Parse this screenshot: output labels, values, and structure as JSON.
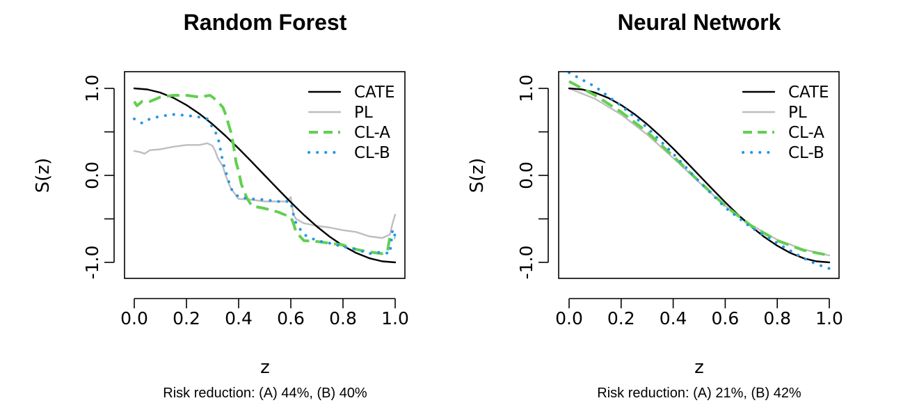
{
  "chart_data": [
    {
      "type": "line",
      "title": "Random Forest",
      "xlabel": "z",
      "ylabel": "S(z)",
      "subtitle": "Risk reduction: (A) 44%, (B) 40%",
      "xlim": [
        0,
        1
      ],
      "ylim": [
        -1.18,
        1.18
      ],
      "xticks": [
        "0.0",
        "0.2",
        "0.4",
        "0.6",
        "0.8",
        "1.0"
      ],
      "yticks": [
        "-1.0",
        "",
        "0.0",
        "",
        "1.0"
      ],
      "legend_position": "top-right",
      "series": [
        {
          "name": "CATE",
          "color": "#000000",
          "dash": "solid",
          "x": [
            0,
            0.05,
            0.1,
            0.15,
            0.2,
            0.25,
            0.3,
            0.35,
            0.4,
            0.45,
            0.5,
            0.55,
            0.6,
            0.65,
            0.7,
            0.75,
            0.8,
            0.85,
            0.9,
            0.95,
            1.0
          ],
          "y": [
            1.0,
            0.988,
            0.951,
            0.891,
            0.809,
            0.707,
            0.588,
            0.454,
            0.309,
            0.156,
            0.0,
            -0.156,
            -0.309,
            -0.454,
            -0.588,
            -0.707,
            -0.809,
            -0.891,
            -0.951,
            -0.988,
            -1.0
          ]
        },
        {
          "name": "PL",
          "color": "#bebebe",
          "dash": "solid",
          "x": [
            0,
            0.02,
            0.04,
            0.06,
            0.1,
            0.15,
            0.2,
            0.25,
            0.28,
            0.3,
            0.31,
            0.32,
            0.33,
            0.34,
            0.35,
            0.37,
            0.4,
            0.45,
            0.5,
            0.55,
            0.58,
            0.6,
            0.61,
            0.62,
            0.65,
            0.7,
            0.75,
            0.8,
            0.85,
            0.9,
            0.95,
            0.98,
            0.99,
            1.0
          ],
          "y": [
            0.28,
            0.27,
            0.25,
            0.29,
            0.3,
            0.33,
            0.35,
            0.35,
            0.37,
            0.34,
            0.28,
            0.2,
            0.15,
            0.1,
            0.0,
            -0.15,
            -0.27,
            -0.28,
            -0.3,
            -0.3,
            -0.3,
            -0.25,
            -0.45,
            -0.5,
            -0.55,
            -0.58,
            -0.6,
            -0.63,
            -0.65,
            -0.7,
            -0.72,
            -0.68,
            -0.55,
            -0.45
          ]
        },
        {
          "name": "CL-A",
          "color": "#61d04f",
          "dash": "dashed",
          "x": [
            0,
            0.01,
            0.03,
            0.06,
            0.1,
            0.15,
            0.2,
            0.25,
            0.29,
            0.3,
            0.32,
            0.34,
            0.35,
            0.36,
            0.37,
            0.38,
            0.39,
            0.4,
            0.41,
            0.43,
            0.45,
            0.5,
            0.55,
            0.6,
            0.61,
            0.62,
            0.65,
            0.7,
            0.75,
            0.8,
            0.85,
            0.9,
            0.95,
            0.97,
            0.98,
            1.0
          ],
          "y": [
            0.85,
            0.8,
            0.85,
            0.85,
            0.9,
            0.92,
            0.92,
            0.9,
            0.92,
            0.9,
            0.85,
            0.78,
            0.7,
            0.6,
            0.5,
            0.35,
            0.15,
            0.05,
            -0.1,
            -0.25,
            -0.35,
            -0.38,
            -0.42,
            -0.48,
            -0.55,
            -0.65,
            -0.75,
            -0.76,
            -0.78,
            -0.8,
            -0.85,
            -0.88,
            -0.9,
            -0.88,
            -0.7,
            -0.72
          ]
        },
        {
          "name": "CL-B",
          "color": "#2297e6",
          "dash": "dotted",
          "x": [
            0,
            0.03,
            0.06,
            0.1,
            0.15,
            0.2,
            0.25,
            0.28,
            0.3,
            0.32,
            0.33,
            0.34,
            0.35,
            0.37,
            0.4,
            0.45,
            0.5,
            0.55,
            0.6,
            0.61,
            0.62,
            0.65,
            0.7,
            0.75,
            0.8,
            0.85,
            0.9,
            0.95,
            0.98,
            0.99,
            1.0
          ],
          "y": [
            0.65,
            0.6,
            0.65,
            0.68,
            0.7,
            0.69,
            0.67,
            0.65,
            0.55,
            0.45,
            0.3,
            0.15,
            0.05,
            -0.15,
            -0.25,
            -0.27,
            -0.28,
            -0.3,
            -0.3,
            -0.45,
            -0.55,
            -0.68,
            -0.75,
            -0.78,
            -0.82,
            -0.85,
            -0.9,
            -0.88,
            -0.9,
            -0.62,
            -0.7
          ]
        }
      ]
    },
    {
      "type": "line",
      "title": "Neural Network",
      "xlabel": "z",
      "ylabel": "S(z)",
      "subtitle": "Risk reduction: (A) 21%, (B) 42%",
      "xlim": [
        0,
        1
      ],
      "ylim": [
        -1.18,
        1.18
      ],
      "xticks": [
        "0.0",
        "0.2",
        "0.4",
        "0.6",
        "0.8",
        "1.0"
      ],
      "yticks": [
        "-1.0",
        "",
        "0.0",
        "",
        "1.0"
      ],
      "legend_position": "top-right",
      "series": [
        {
          "name": "CATE",
          "color": "#000000",
          "dash": "solid",
          "x": [
            0,
            0.05,
            0.1,
            0.15,
            0.2,
            0.25,
            0.3,
            0.35,
            0.4,
            0.45,
            0.5,
            0.55,
            0.6,
            0.65,
            0.7,
            0.75,
            0.8,
            0.85,
            0.9,
            0.95,
            1.0
          ],
          "y": [
            1.0,
            0.988,
            0.951,
            0.891,
            0.809,
            0.707,
            0.588,
            0.454,
            0.309,
            0.156,
            0.0,
            -0.156,
            -0.309,
            -0.454,
            -0.588,
            -0.707,
            -0.809,
            -0.891,
            -0.951,
            -0.988,
            -1.0
          ]
        },
        {
          "name": "PL",
          "color": "#bebebe",
          "dash": "solid",
          "x": [
            0,
            0.1,
            0.2,
            0.3,
            0.4,
            0.5,
            0.6,
            0.7,
            0.8,
            0.9,
            1.0
          ],
          "y": [
            1.0,
            0.88,
            0.7,
            0.47,
            0.2,
            -0.08,
            -0.35,
            -0.57,
            -0.74,
            -0.85,
            -0.92
          ]
        },
        {
          "name": "CL-A",
          "color": "#61d04f",
          "dash": "dashed",
          "x": [
            0,
            0.1,
            0.2,
            0.3,
            0.4,
            0.5,
            0.6,
            0.7,
            0.8,
            0.9,
            1.0
          ],
          "y": [
            1.08,
            0.92,
            0.73,
            0.5,
            0.22,
            -0.07,
            -0.35,
            -0.58,
            -0.75,
            -0.86,
            -0.92
          ]
        },
        {
          "name": "CL-B",
          "color": "#2297e6",
          "dash": "dotted",
          "x": [
            0,
            0.05,
            0.1,
            0.2,
            0.3,
            0.4,
            0.5,
            0.6,
            0.7,
            0.8,
            0.9,
            0.95,
            1.0
          ],
          "y": [
            1.18,
            1.1,
            1.02,
            0.8,
            0.55,
            0.25,
            -0.07,
            -0.37,
            -0.6,
            -0.78,
            -0.95,
            -1.02,
            -1.07
          ]
        }
      ]
    }
  ]
}
